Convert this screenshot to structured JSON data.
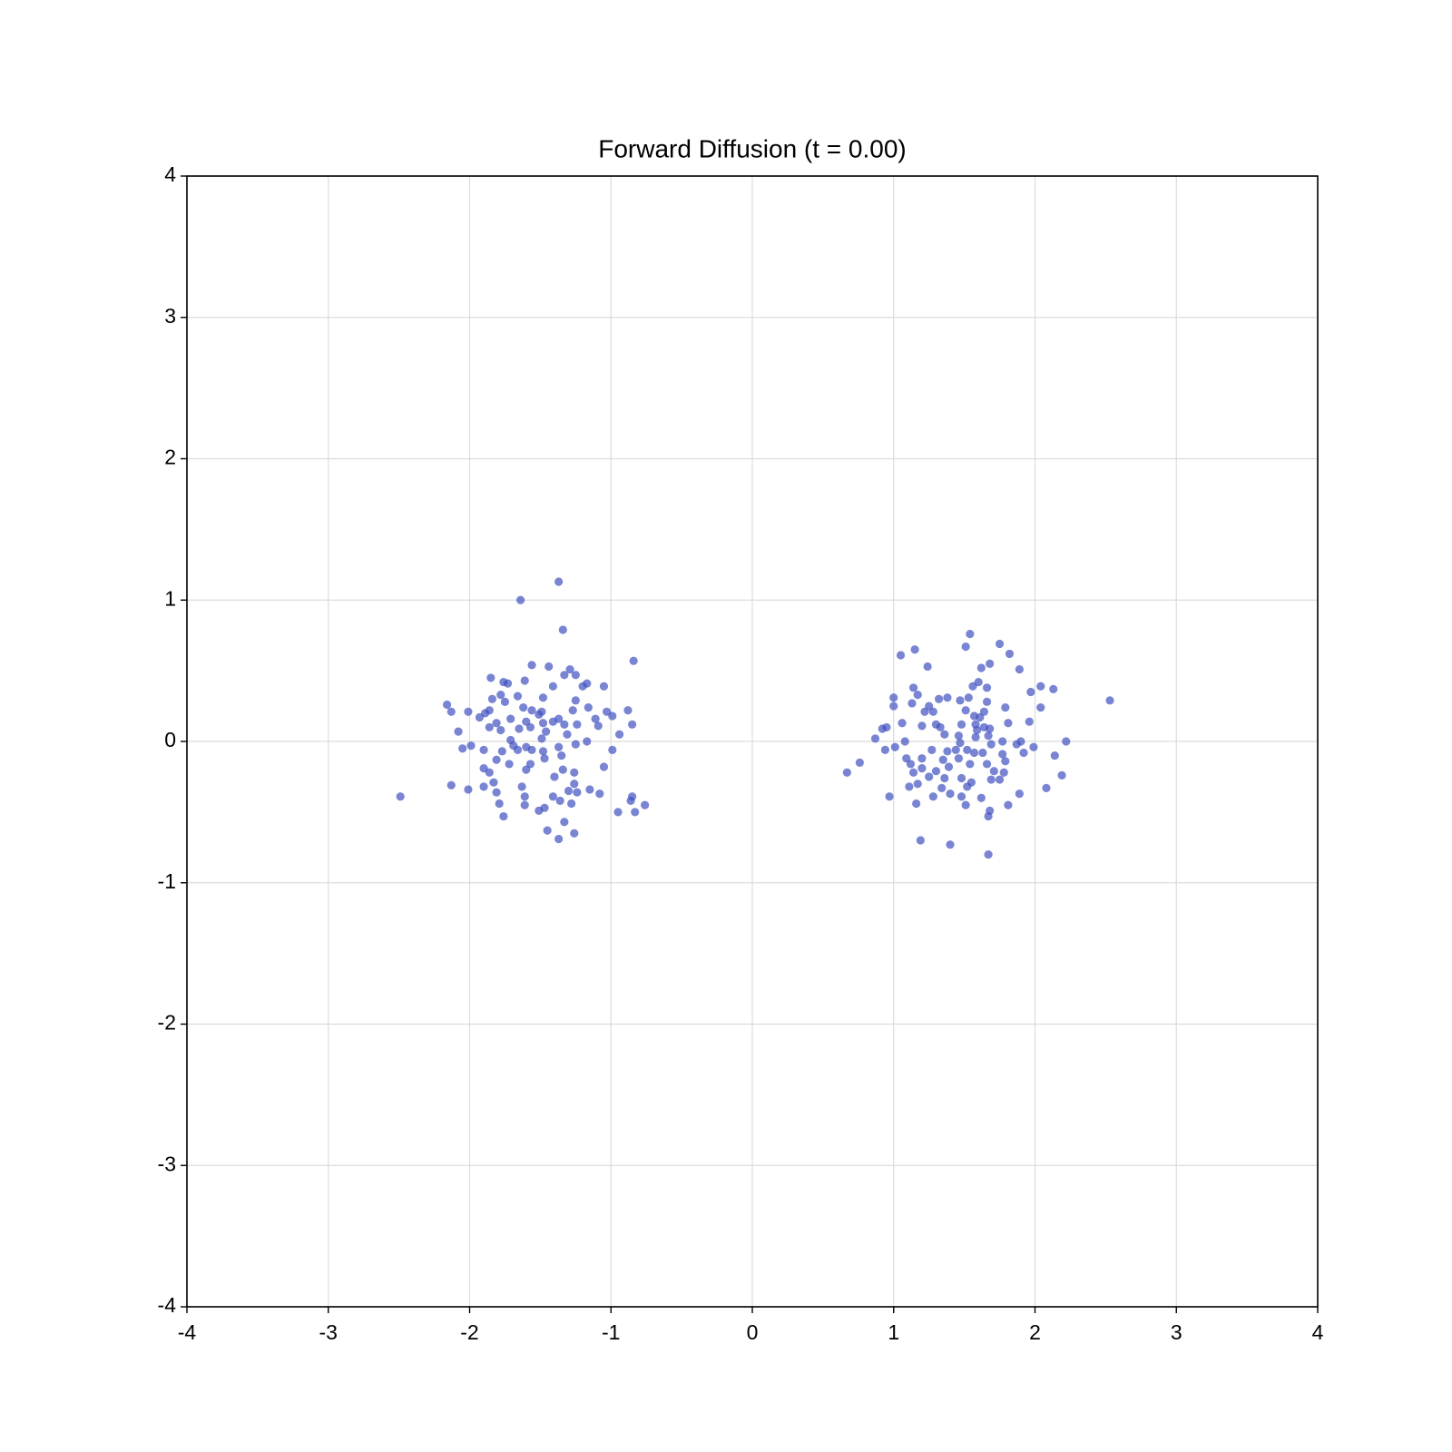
{
  "chart_data": {
    "type": "scatter",
    "title": "Forward Diffusion (t = 0.00)",
    "color": "#4050c0",
    "grid": true,
    "xlim": [
      -4,
      4
    ],
    "ylim": [
      -4,
      4
    ],
    "xticks": [
      -4,
      -3,
      -2,
      -1,
      0,
      1,
      2,
      3,
      4
    ],
    "yticks": [
      -4,
      -3,
      -2,
      -1,
      0,
      1,
      2,
      3,
      4
    ],
    "x": [
      -2.49,
      -1.37,
      -1.64,
      -1.34,
      -0.84,
      -1.56,
      -1.44,
      -1.85,
      -1.61,
      -1.76,
      -1.73,
      -1.29,
      -1.33,
      -1.25,
      -1.17,
      -1.2,
      -1.05,
      -1.41,
      -2.16,
      -2.13,
      -2.01,
      -1.93,
      -1.89,
      -1.86,
      -1.84,
      -1.78,
      -1.75,
      -1.66,
      -1.62,
      -1.48,
      -1.49,
      -1.51,
      -1.56,
      -1.37,
      -1.41,
      -1.27,
      -1.25,
      -1.16,
      -1.24,
      -1.11,
      -1.03,
      -0.99,
      -0.88,
      -0.85,
      -0.94,
      -1.09,
      -1.33,
      -1.48,
      -1.6,
      -1.71,
      -1.81,
      -1.86,
      -2.08,
      -1.78,
      -1.65,
      -1.57,
      -1.46,
      -1.31,
      -1.71,
      -1.49,
      -1.69,
      -2.05,
      -1.99,
      -1.9,
      -1.77,
      -1.66,
      -1.6,
      -1.56,
      -1.48,
      -1.37,
      -1.25,
      -1.17,
      -0.99,
      -1.35,
      -1.47,
      -1.57,
      -1.72,
      -1.81,
      -1.9,
      -1.86,
      -1.6,
      -1.05,
      -1.34,
      -1.26,
      -1.4,
      -1.83,
      -2.13,
      -2.01,
      -1.9,
      -1.81,
      -1.63,
      -1.26,
      -1.3,
      -1.24,
      -1.15,
      -1.61,
      -1.41,
      -1.36,
      -1.28,
      -1.08,
      -0.85,
      -0.86,
      -0.76,
      -0.83,
      -0.95,
      -1.79,
      -1.61,
      -1.51,
      -1.47,
      -1.76,
      -1.33,
      -1.45,
      -1.26,
      -1.37,
      2.53,
      1.54,
      1.75,
      1.51,
      1.15,
      1.05,
      1.82,
      1.24,
      1.68,
      1.62,
      1.89,
      1.6,
      1.56,
      1.66,
      1.14,
      2.04,
      2.13,
      1.97,
      1.38,
      1.32,
      1.47,
      1.53,
      1.0,
      1.17,
      1.0,
      1.13,
      1.25,
      1.66,
      1.79,
      2.04,
      1.28,
      1.22,
      1.51,
      1.57,
      1.61,
      1.64,
      1.96,
      1.06,
      1.2,
      1.3,
      1.33,
      1.48,
      1.58,
      1.64,
      1.81,
      0.92,
      0.95,
      1.36,
      1.46,
      1.59,
      1.68,
      1.67,
      1.58,
      0.87,
      1.08,
      2.22,
      1.47,
      1.77,
      1.69,
      1.87,
      1.9,
      1.99,
      0.94,
      1.01,
      1.27,
      1.38,
      1.44,
      1.52,
      1.57,
      1.63,
      1.77,
      1.92,
      2.14,
      1.09,
      1.2,
      1.35,
      1.46,
      1.54,
      1.66,
      1.79,
      0.76,
      0.67,
      1.12,
      1.2,
      1.3,
      1.39,
      1.71,
      1.78,
      2.19,
      1.14,
      1.25,
      1.36,
      1.48,
      1.69,
      1.75,
      1.17,
      1.55,
      1.11,
      1.34,
      1.52,
      2.08,
      1.4,
      1.89,
      1.28,
      0.97,
      1.48,
      1.62,
      1.16,
      1.51,
      1.81,
      1.68,
      1.67,
      1.19,
      1.4,
      1.67
    ],
    "y": [
      -0.39,
      1.13,
      1.0,
      0.79,
      0.57,
      0.54,
      0.53,
      0.45,
      0.43,
      0.42,
      0.41,
      0.51,
      0.47,
      0.47,
      0.41,
      0.39,
      0.39,
      0.39,
      0.26,
      0.21,
      0.21,
      0.17,
      0.2,
      0.22,
      0.3,
      0.33,
      0.28,
      0.32,
      0.24,
      0.31,
      0.21,
      0.19,
      0.22,
      0.16,
      0.14,
      0.22,
      0.29,
      0.24,
      0.12,
      0.16,
      0.21,
      0.18,
      0.22,
      0.12,
      0.05,
      0.11,
      0.12,
      0.13,
      0.14,
      0.16,
      0.13,
      0.1,
      0.07,
      0.08,
      0.09,
      0.1,
      0.07,
      0.05,
      0.01,
      0.02,
      -0.03,
      -0.05,
      -0.03,
      -0.06,
      -0.07,
      -0.06,
      -0.04,
      -0.06,
      -0.07,
      -0.04,
      -0.02,
      0.0,
      -0.06,
      -0.1,
      -0.12,
      -0.16,
      -0.16,
      -0.13,
      -0.19,
      -0.22,
      -0.2,
      -0.18,
      -0.2,
      -0.22,
      -0.25,
      -0.29,
      -0.31,
      -0.34,
      -0.32,
      -0.36,
      -0.32,
      -0.3,
      -0.35,
      -0.36,
      -0.34,
      -0.39,
      -0.39,
      -0.42,
      -0.44,
      -0.37,
      -0.39,
      -0.42,
      -0.45,
      -0.5,
      -0.5,
      -0.44,
      -0.45,
      -0.49,
      -0.47,
      -0.53,
      -0.57,
      -0.63,
      -0.65,
      -0.69,
      0.29,
      0.76,
      0.69,
      0.67,
      0.65,
      0.61,
      0.62,
      0.53,
      0.55,
      0.52,
      0.51,
      0.42,
      0.39,
      0.38,
      0.38,
      0.39,
      0.37,
      0.35,
      0.31,
      0.3,
      0.29,
      0.31,
      0.31,
      0.33,
      0.25,
      0.27,
      0.25,
      0.28,
      0.24,
      0.24,
      0.21,
      0.21,
      0.22,
      0.18,
      0.17,
      0.21,
      0.14,
      0.13,
      0.11,
      0.12,
      0.1,
      0.12,
      0.12,
      0.1,
      0.13,
      0.09,
      0.1,
      0.05,
      0.04,
      0.08,
      0.09,
      0.04,
      0.03,
      0.02,
      0.0,
      0.0,
      -0.01,
      0.0,
      -0.02,
      -0.02,
      0.0,
      -0.04,
      -0.06,
      -0.04,
      -0.06,
      -0.07,
      -0.06,
      -0.06,
      -0.08,
      -0.08,
      -0.09,
      -0.08,
      -0.1,
      -0.12,
      -0.12,
      -0.13,
      -0.12,
      -0.16,
      -0.16,
      -0.14,
      -0.15,
      -0.22,
      -0.16,
      -0.19,
      -0.21,
      -0.18,
      -0.21,
      -0.22,
      -0.24,
      -0.22,
      -0.25,
      -0.26,
      -0.26,
      -0.27,
      -0.27,
      -0.3,
      -0.29,
      -0.32,
      -0.33,
      -0.32,
      -0.33,
      -0.37,
      -0.37,
      -0.39,
      -0.39,
      -0.39,
      -0.4,
      -0.44,
      -0.45,
      -0.45,
      -0.49,
      -0.53,
      -0.7,
      -0.73,
      -0.8
    ]
  }
}
